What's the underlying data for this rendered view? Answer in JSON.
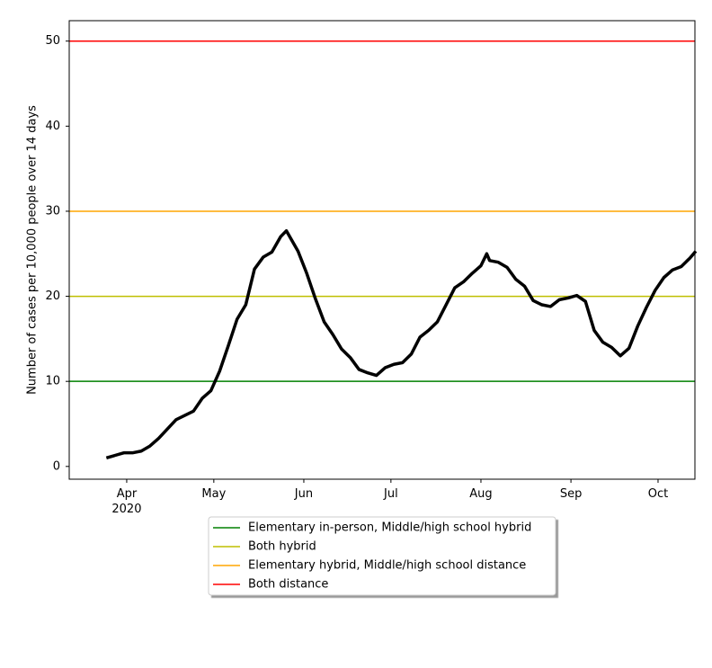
{
  "chart_data": {
    "type": "line",
    "y_label": "Number of cases per 10,000 people over 14 days",
    "x": [
      85,
      88,
      91,
      94,
      97,
      100,
      103,
      106,
      109,
      112,
      115,
      118,
      121,
      124,
      127,
      130,
      133,
      136,
      139,
      142,
      145,
      147,
      151,
      154,
      157,
      160,
      163,
      166,
      169,
      172,
      175,
      178,
      181,
      184,
      187,
      190,
      193,
      196,
      199,
      202,
      205,
      208,
      211,
      214,
      216,
      217,
      220,
      223,
      226,
      229,
      232,
      235,
      238,
      241,
      244,
      247,
      250,
      253,
      256,
      259,
      262,
      265,
      268,
      271,
      274,
      277,
      280,
      283,
      286,
      288
    ],
    "series": [
      {
        "color": "#000000",
        "values": [
          1.0,
          1.3,
          1.6,
          1.6,
          1.8,
          2.4,
          3.3,
          4.4,
          5.5,
          6.0,
          6.5,
          8.0,
          8.9,
          11.2,
          14.2,
          17.3,
          19.0,
          23.2,
          24.6,
          25.2,
          27.0,
          27.7,
          25.3,
          22.7,
          19.7,
          17.0,
          15.5,
          13.8,
          12.8,
          11.4,
          11.0,
          10.7,
          11.6,
          12.0,
          12.2,
          13.2,
          15.2,
          16.0,
          17.0,
          19.0,
          21.0,
          21.7,
          22.7,
          23.6,
          25.0,
          24.2,
          24.0,
          23.4,
          22.0,
          21.2,
          19.5,
          19.0,
          18.8,
          19.6,
          19.8,
          20.1,
          19.4,
          16.0,
          14.6,
          14.0,
          13.0,
          13.9,
          16.5,
          18.7,
          20.7,
          22.2,
          23.1,
          23.5,
          24.5,
          25.3
        ]
      }
    ],
    "thresholds": [
      {
        "name": "Elementary in-person, Middle/high school hybrid",
        "color": "#008000",
        "value": 10
      },
      {
        "name": "Both hybrid",
        "color": "#bfbf00",
        "value": 20
      },
      {
        "name": "Elementary hybrid, Middle/high school distance",
        "color": "#ffa500",
        "value": 30
      },
      {
        "name": "Both distance",
        "color": "#ff0000",
        "value": 50
      }
    ],
    "xlim": [
      72.2,
      287.7
    ],
    "xticks": [
      {
        "value": 92,
        "label": "Apr\n2020"
      },
      {
        "value": 122,
        "label": "May"
      },
      {
        "value": 153,
        "label": "Jun"
      },
      {
        "value": 183,
        "label": "Jul"
      },
      {
        "value": 214,
        "label": "Aug"
      },
      {
        "value": 245,
        "label": "Sep"
      },
      {
        "value": 275,
        "label": "Oct"
      }
    ],
    "ylim": [
      -1.5,
      52.4
    ],
    "yticks": [
      0,
      10,
      20,
      30,
      40,
      50
    ],
    "legend_position": "below"
  }
}
